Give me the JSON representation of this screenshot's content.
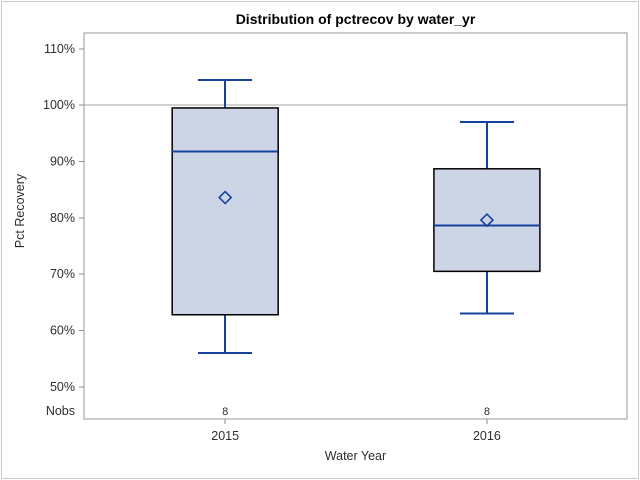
{
  "chart_data": {
    "type": "box",
    "title": "Distribution of pctrecov by water_yr",
    "xlabel": "Water Year",
    "ylabel": "Pct Recovery",
    "nobs_row_label": "Nobs",
    "categories": [
      "2015",
      "2016"
    ],
    "y_axis": {
      "ticks": [
        {
          "label": "110%",
          "value": 110
        },
        {
          "label": "100%",
          "value": 100
        },
        {
          "label": "90%",
          "value": 90
        },
        {
          "label": "80%",
          "value": 80
        },
        {
          "label": "70%",
          "value": 70
        },
        {
          "label": "60%",
          "value": 60
        },
        {
          "label": "50%",
          "value": 50
        }
      ],
      "range_shown": [
        44.3,
        112.8
      ]
    },
    "reference_line_value": 100,
    "grid": "single horizontal reference line at 100%",
    "legend": "none",
    "series": [
      {
        "category": "2015",
        "nobs": "8",
        "whisker_low": 56.0,
        "q1": 62.8,
        "median": 91.8,
        "mean": 83.6,
        "q3": 99.5,
        "whisker_high": 104.5
      },
      {
        "category": "2016",
        "nobs": "8",
        "whisker_low": 63.0,
        "q1": 70.5,
        "median": 78.6,
        "mean": 79.6,
        "q3": 88.7,
        "whisker_high": 97.0
      }
    ],
    "colors": {
      "box_fill": "#ccd5e5",
      "box_border": "#000000",
      "whisker_median_line": "#16429e",
      "mean_marker": "#16429e",
      "plot_frame": "#999999",
      "reference_line": "#a3a3a3",
      "tick_color": "#8c8c8c",
      "text": "#2e2e2e",
      "outer_border": "#cacaca",
      "background": "#ffffff"
    }
  }
}
